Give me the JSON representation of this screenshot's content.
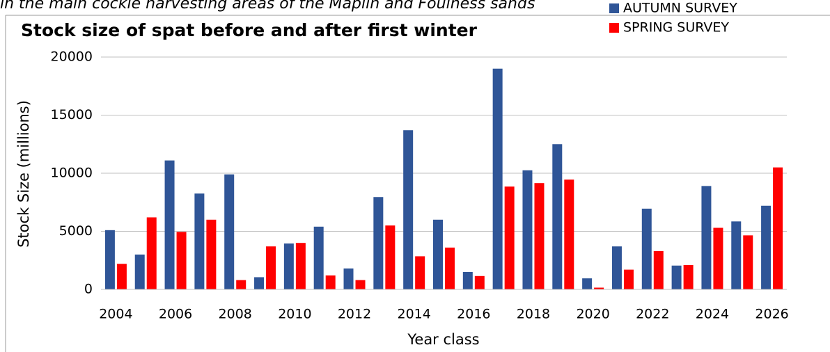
{
  "caption": "in the main cockle harvesting areas of the Maplin and Foulness sands",
  "chart_data": {
    "type": "bar",
    "title": "Stock size of spat before and after first winter",
    "xlabel": "Year class",
    "ylabel": "Stock Size (millions)",
    "categories": [
      "2004",
      null,
      "2006",
      null,
      "2008",
      null,
      "2010",
      null,
      "2012",
      null,
      "2014",
      null,
      "2016",
      null,
      "2018",
      null,
      "2020",
      null,
      "2022",
      null,
      "2024",
      null,
      "2026"
    ],
    "series": [
      {
        "name": "AUTUMN SURVEY",
        "color": "#2f5597",
        "values": [
          5100,
          3000,
          11100,
          8250,
          9900,
          1050,
          3950,
          5400,
          1800,
          7950,
          13700,
          6000,
          1500,
          19000,
          10250,
          12500,
          950,
          3700,
          6950,
          2050,
          8900,
          5850,
          7200
        ]
      },
      {
        "name": "SPRING SURVEY",
        "color": "#ff0000",
        "values": [
          2200,
          6200,
          4950,
          6000,
          800,
          3700,
          4000,
          1200,
          800,
          5500,
          2850,
          3600,
          1150,
          8850,
          9150,
          9450,
          150,
          1700,
          3300,
          2100,
          5300,
          4650,
          10500
        ]
      }
    ],
    "ylim": [
      0,
      20000
    ],
    "yticks": [
      0,
      5000,
      10000,
      15000,
      20000
    ],
    "grid": true,
    "legend": "top-right"
  }
}
